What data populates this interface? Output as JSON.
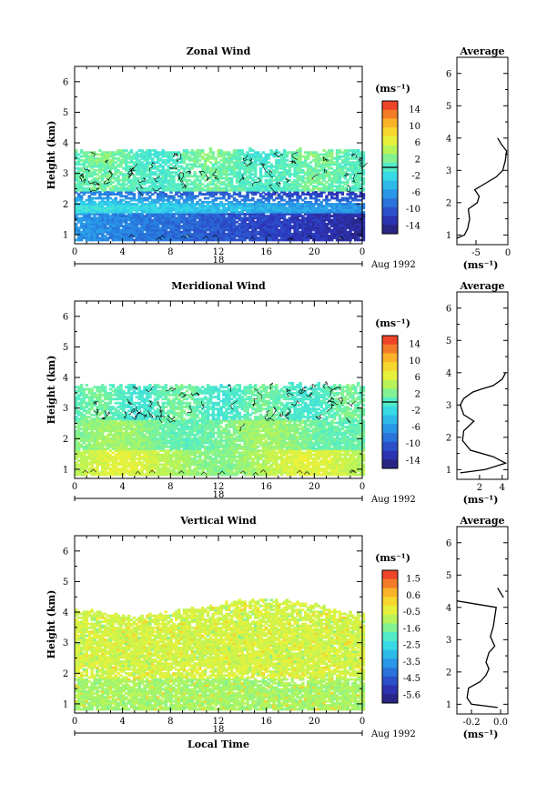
{
  "figure": {
    "date_label": "Aug 1992",
    "xlabel": "Local Time",
    "day_label": "18"
  },
  "chart_data": [
    {
      "type": "heatmap",
      "title": "Zonal Wind",
      "ylabel": "Height (km)",
      "xlabel": "Local Time",
      "xlim": [
        0,
        24
      ],
      "ylim": [
        0.7,
        6.5
      ],
      "x_ticks": [
        "0",
        "4",
        "8",
        "12",
        "16",
        "20",
        "0"
      ],
      "y_ticks": [
        "1",
        "2",
        "3",
        "4",
        "5",
        "6"
      ],
      "data_height_range": [
        0.8,
        3.8
      ],
      "colorbar": {
        "unit": "(ms⁻¹)",
        "range": [
          -15,
          15
        ],
        "tick_labels": [
          "14",
          "10",
          "6",
          "2",
          "-2",
          "-6",
          "-10",
          "-14"
        ],
        "contour_mark": 0
      },
      "profile": {
        "title": "Average",
        "xlabel": "(ms⁻¹)",
        "xlim": [
          -8,
          0
        ],
        "x_ticks": [
          "-5",
          "0"
        ],
        "y_ticks": [
          "1",
          "2",
          "3",
          "4",
          "5",
          "6"
        ],
        "points": [
          [
            -8,
            0.9
          ],
          [
            -6.8,
            1.0
          ],
          [
            -6.3,
            1.2
          ],
          [
            -6.0,
            1.5
          ],
          [
            -6.2,
            1.8
          ],
          [
            -4.8,
            2.0
          ],
          [
            -4.5,
            2.2
          ],
          [
            -5.2,
            2.4
          ],
          [
            -3.5,
            2.6
          ],
          [
            -1.8,
            2.8
          ],
          [
            -0.8,
            3.0
          ],
          [
            -0.4,
            3.3
          ],
          [
            -0.2,
            3.6
          ],
          [
            -1.0,
            3.8
          ],
          [
            -1.6,
            4.0
          ]
        ]
      }
    },
    {
      "type": "heatmap",
      "title": "Meridional Wind",
      "ylabel": "Height (km)",
      "xlabel": "Local Time",
      "xlim": [
        0,
        24
      ],
      "ylim": [
        0.7,
        6.5
      ],
      "x_ticks": [
        "0",
        "4",
        "8",
        "12",
        "16",
        "20",
        "0"
      ],
      "y_ticks": [
        "1",
        "2",
        "3",
        "4",
        "5",
        "6"
      ],
      "data_height_range": [
        0.8,
        3.8
      ],
      "colorbar": {
        "unit": "(ms⁻¹)",
        "range": [
          -15,
          15
        ],
        "tick_labels": [
          "14",
          "10",
          "6",
          "2",
          "-2",
          "-6",
          "-10",
          "-14"
        ],
        "contour_mark": 0
      },
      "profile": {
        "title": "Average",
        "xlabel": "(ms⁻¹)",
        "xlim": [
          0,
          4.5
        ],
        "x_ticks": [
          "2",
          "4"
        ],
        "y_ticks": [
          "1",
          "2",
          "3",
          "4",
          "5",
          "6"
        ],
        "points": [
          [
            0.3,
            0.9
          ],
          [
            2.5,
            1.0
          ],
          [
            4.3,
            1.2
          ],
          [
            3.2,
            1.4
          ],
          [
            1.2,
            1.6
          ],
          [
            0.5,
            1.9
          ],
          [
            0.6,
            2.2
          ],
          [
            1.5,
            2.5
          ],
          [
            0.6,
            2.7
          ],
          [
            0.3,
            3.0
          ],
          [
            0.6,
            3.2
          ],
          [
            1.4,
            3.4
          ],
          [
            2.2,
            3.5
          ],
          [
            3.2,
            3.6
          ],
          [
            4.0,
            3.8
          ],
          [
            4.3,
            4.0
          ]
        ]
      }
    },
    {
      "type": "heatmap",
      "title": "Vertical Wind",
      "ylabel": "Height (km)",
      "xlabel": "Local Time",
      "xlim": [
        0,
        24
      ],
      "ylim": [
        0.7,
        6.5
      ],
      "x_ticks": [
        "0",
        "4",
        "8",
        "12",
        "16",
        "20",
        "0"
      ],
      "y_ticks": [
        "1",
        "2",
        "3",
        "4",
        "5",
        "6"
      ],
      "data_height_range": [
        0.8,
        4.2
      ],
      "colorbar": {
        "unit": "(ms⁻¹)",
        "range": [
          -6.0,
          2.0
        ],
        "tick_labels": [
          "1.5",
          "0.6",
          "-0.5",
          "-1.6",
          "-2.5",
          "-3.5",
          "-4.5",
          "-5.6"
        ],
        "contour_mark": null
      },
      "profile": {
        "title": "Average",
        "xlabel": "(ms⁻¹)",
        "xlim": [
          -0.3,
          0.05
        ],
        "x_ticks": [
          "-0.2",
          "0.0"
        ],
        "y_ticks": [
          "1",
          "2",
          "3",
          "4",
          "5",
          "6"
        ],
        "points": [
          [
            -0.02,
            0.9
          ],
          [
            -0.2,
            1.0
          ],
          [
            -0.23,
            1.2
          ],
          [
            -0.22,
            1.5
          ],
          [
            -0.14,
            1.7
          ],
          [
            -0.1,
            1.9
          ],
          [
            -0.08,
            2.1
          ],
          [
            -0.1,
            2.3
          ],
          [
            -0.08,
            2.6
          ],
          [
            -0.04,
            2.8
          ],
          [
            -0.07,
            3.1
          ],
          [
            -0.05,
            3.4
          ],
          [
            -0.04,
            3.7
          ],
          [
            -0.03,
            4.0
          ],
          [
            -0.3,
            4.2
          ]
        ],
        "extra_segment": [
          [
            -0.02,
            4.6
          ],
          [
            0.02,
            4.3
          ]
        ]
      }
    }
  ]
}
